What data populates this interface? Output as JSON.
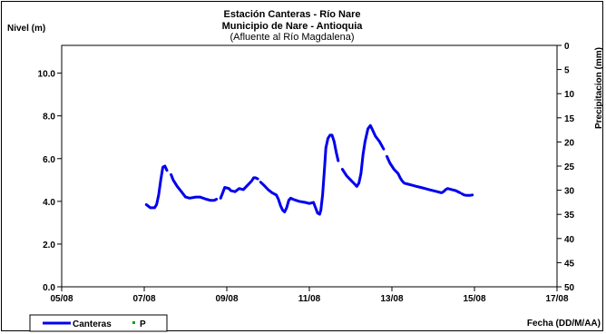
{
  "chart_data": {
    "type": "line",
    "title": [
      "Estación Canteras - Río Nare",
      "Municipio de Nare - Antioquia"
    ],
    "subtitle": "(Afluente al Río Magdalena)",
    "ylabel": "Nivel (m)",
    "y2label": "Precipitacion (mm)",
    "xlabel": "Fecha (DD/M/AA)",
    "x_ticks": [
      "05/08",
      "07/08",
      "09/08",
      "11/08",
      "13/08",
      "15/08",
      "17/08"
    ],
    "y_ticks": [
      "0.0",
      "2.0",
      "4.0",
      "6.0",
      "8.0",
      "10.0"
    ],
    "y2_ticks": [
      "0",
      "5",
      "10",
      "15",
      "20",
      "25",
      "30",
      "35",
      "40",
      "45",
      "50"
    ],
    "xlim_days": [
      5,
      17
    ],
    "ylim": [
      0,
      11.3
    ],
    "y2lim_inverted": [
      0,
      50
    ],
    "grid": false,
    "legend_position": "bottom-left",
    "series": [
      {
        "name": "Canteras",
        "color": "#0000ee",
        "style": "line",
        "segments": [
          [
            [
              7.05,
              3.85
            ],
            [
              7.15,
              3.7
            ],
            [
              7.25,
              3.7
            ],
            [
              7.3,
              3.85
            ],
            [
              7.35,
              4.3
            ],
            [
              7.4,
              5.0
            ],
            [
              7.45,
              5.6
            ],
            [
              7.5,
              5.65
            ],
            [
              7.55,
              5.45
            ]
          ],
          [
            [
              7.65,
              5.25
            ],
            [
              7.7,
              5.0
            ],
            [
              7.8,
              4.7
            ],
            [
              7.9,
              4.45
            ],
            [
              8.0,
              4.2
            ],
            [
              8.1,
              4.15
            ],
            [
              8.25,
              4.2
            ],
            [
              8.35,
              4.2
            ],
            [
              8.5,
              4.1
            ],
            [
              8.6,
              4.05
            ],
            [
              8.7,
              4.05
            ],
            [
              8.75,
              4.1
            ]
          ],
          [
            [
              8.85,
              4.15
            ],
            [
              8.9,
              4.4
            ],
            [
              8.95,
              4.65
            ],
            [
              9.05,
              4.6
            ],
            [
              9.1,
              4.5
            ],
            [
              9.2,
              4.45
            ],
            [
              9.3,
              4.6
            ],
            [
              9.4,
              4.55
            ],
            [
              9.5,
              4.75
            ],
            [
              9.6,
              4.95
            ],
            [
              9.65,
              5.1
            ],
            [
              9.7,
              5.1
            ],
            [
              9.75,
              5.05
            ]
          ],
          [
            [
              9.82,
              4.9
            ],
            [
              9.9,
              4.75
            ],
            [
              10.0,
              4.55
            ],
            [
              10.1,
              4.4
            ],
            [
              10.2,
              4.3
            ],
            [
              10.25,
              4.1
            ],
            [
              10.3,
              3.8
            ],
            [
              10.35,
              3.6
            ],
            [
              10.4,
              3.5
            ],
            [
              10.45,
              3.7
            ],
            [
              10.5,
              4.05
            ],
            [
              10.55,
              4.15
            ],
            [
              10.6,
              4.1
            ],
            [
              10.75,
              4.0
            ],
            [
              10.9,
              3.95
            ],
            [
              11.0,
              3.9
            ],
            [
              11.1,
              3.95
            ],
            [
              11.15,
              3.7
            ],
            [
              11.2,
              3.45
            ],
            [
              11.25,
              3.4
            ],
            [
              11.28,
              3.6
            ],
            [
              11.32,
              4.3
            ],
            [
              11.37,
              5.6
            ],
            [
              11.4,
              6.5
            ],
            [
              11.45,
              6.95
            ],
            [
              11.5,
              7.1
            ],
            [
              11.55,
              7.1
            ],
            [
              11.6,
              6.8
            ],
            [
              11.65,
              6.3
            ],
            [
              11.7,
              5.9
            ]
          ],
          [
            [
              11.8,
              5.5
            ],
            [
              11.9,
              5.2
            ],
            [
              12.0,
              5.0
            ],
            [
              12.1,
              4.8
            ],
            [
              12.15,
              4.7
            ],
            [
              12.2,
              4.85
            ],
            [
              12.25,
              5.3
            ],
            [
              12.3,
              6.2
            ],
            [
              12.35,
              6.8
            ],
            [
              12.42,
              7.4
            ],
            [
              12.48,
              7.55
            ],
            [
              12.53,
              7.35
            ],
            [
              12.6,
              7.05
            ],
            [
              12.7,
              6.8
            ],
            [
              12.8,
              6.45
            ]
          ],
          [
            [
              12.88,
              6.1
            ],
            [
              12.95,
              5.8
            ],
            [
              13.05,
              5.5
            ],
            [
              13.15,
              5.3
            ],
            [
              13.2,
              5.1
            ],
            [
              13.25,
              4.95
            ],
            [
              13.3,
              4.85
            ],
            [
              13.4,
              4.8
            ],
            [
              13.5,
              4.75
            ],
            [
              13.6,
              4.7
            ],
            [
              13.7,
              4.65
            ],
            [
              13.8,
              4.6
            ],
            [
              13.9,
              4.55
            ],
            [
              14.0,
              4.5
            ],
            [
              14.1,
              4.45
            ],
            [
              14.2,
              4.4
            ],
            [
              14.25,
              4.45
            ],
            [
              14.3,
              4.55
            ],
            [
              14.35,
              4.6
            ],
            [
              14.45,
              4.55
            ],
            [
              14.55,
              4.5
            ],
            [
              14.65,
              4.4
            ]
          ],
          [
            [
              14.7,
              4.35
            ],
            [
              14.75,
              4.3
            ],
            [
              14.8,
              4.28
            ],
            [
              14.9,
              4.28
            ],
            [
              14.95,
              4.3
            ]
          ]
        ]
      },
      {
        "name": "P",
        "color": "#00aa00",
        "style": "marker",
        "points": []
      }
    ]
  }
}
